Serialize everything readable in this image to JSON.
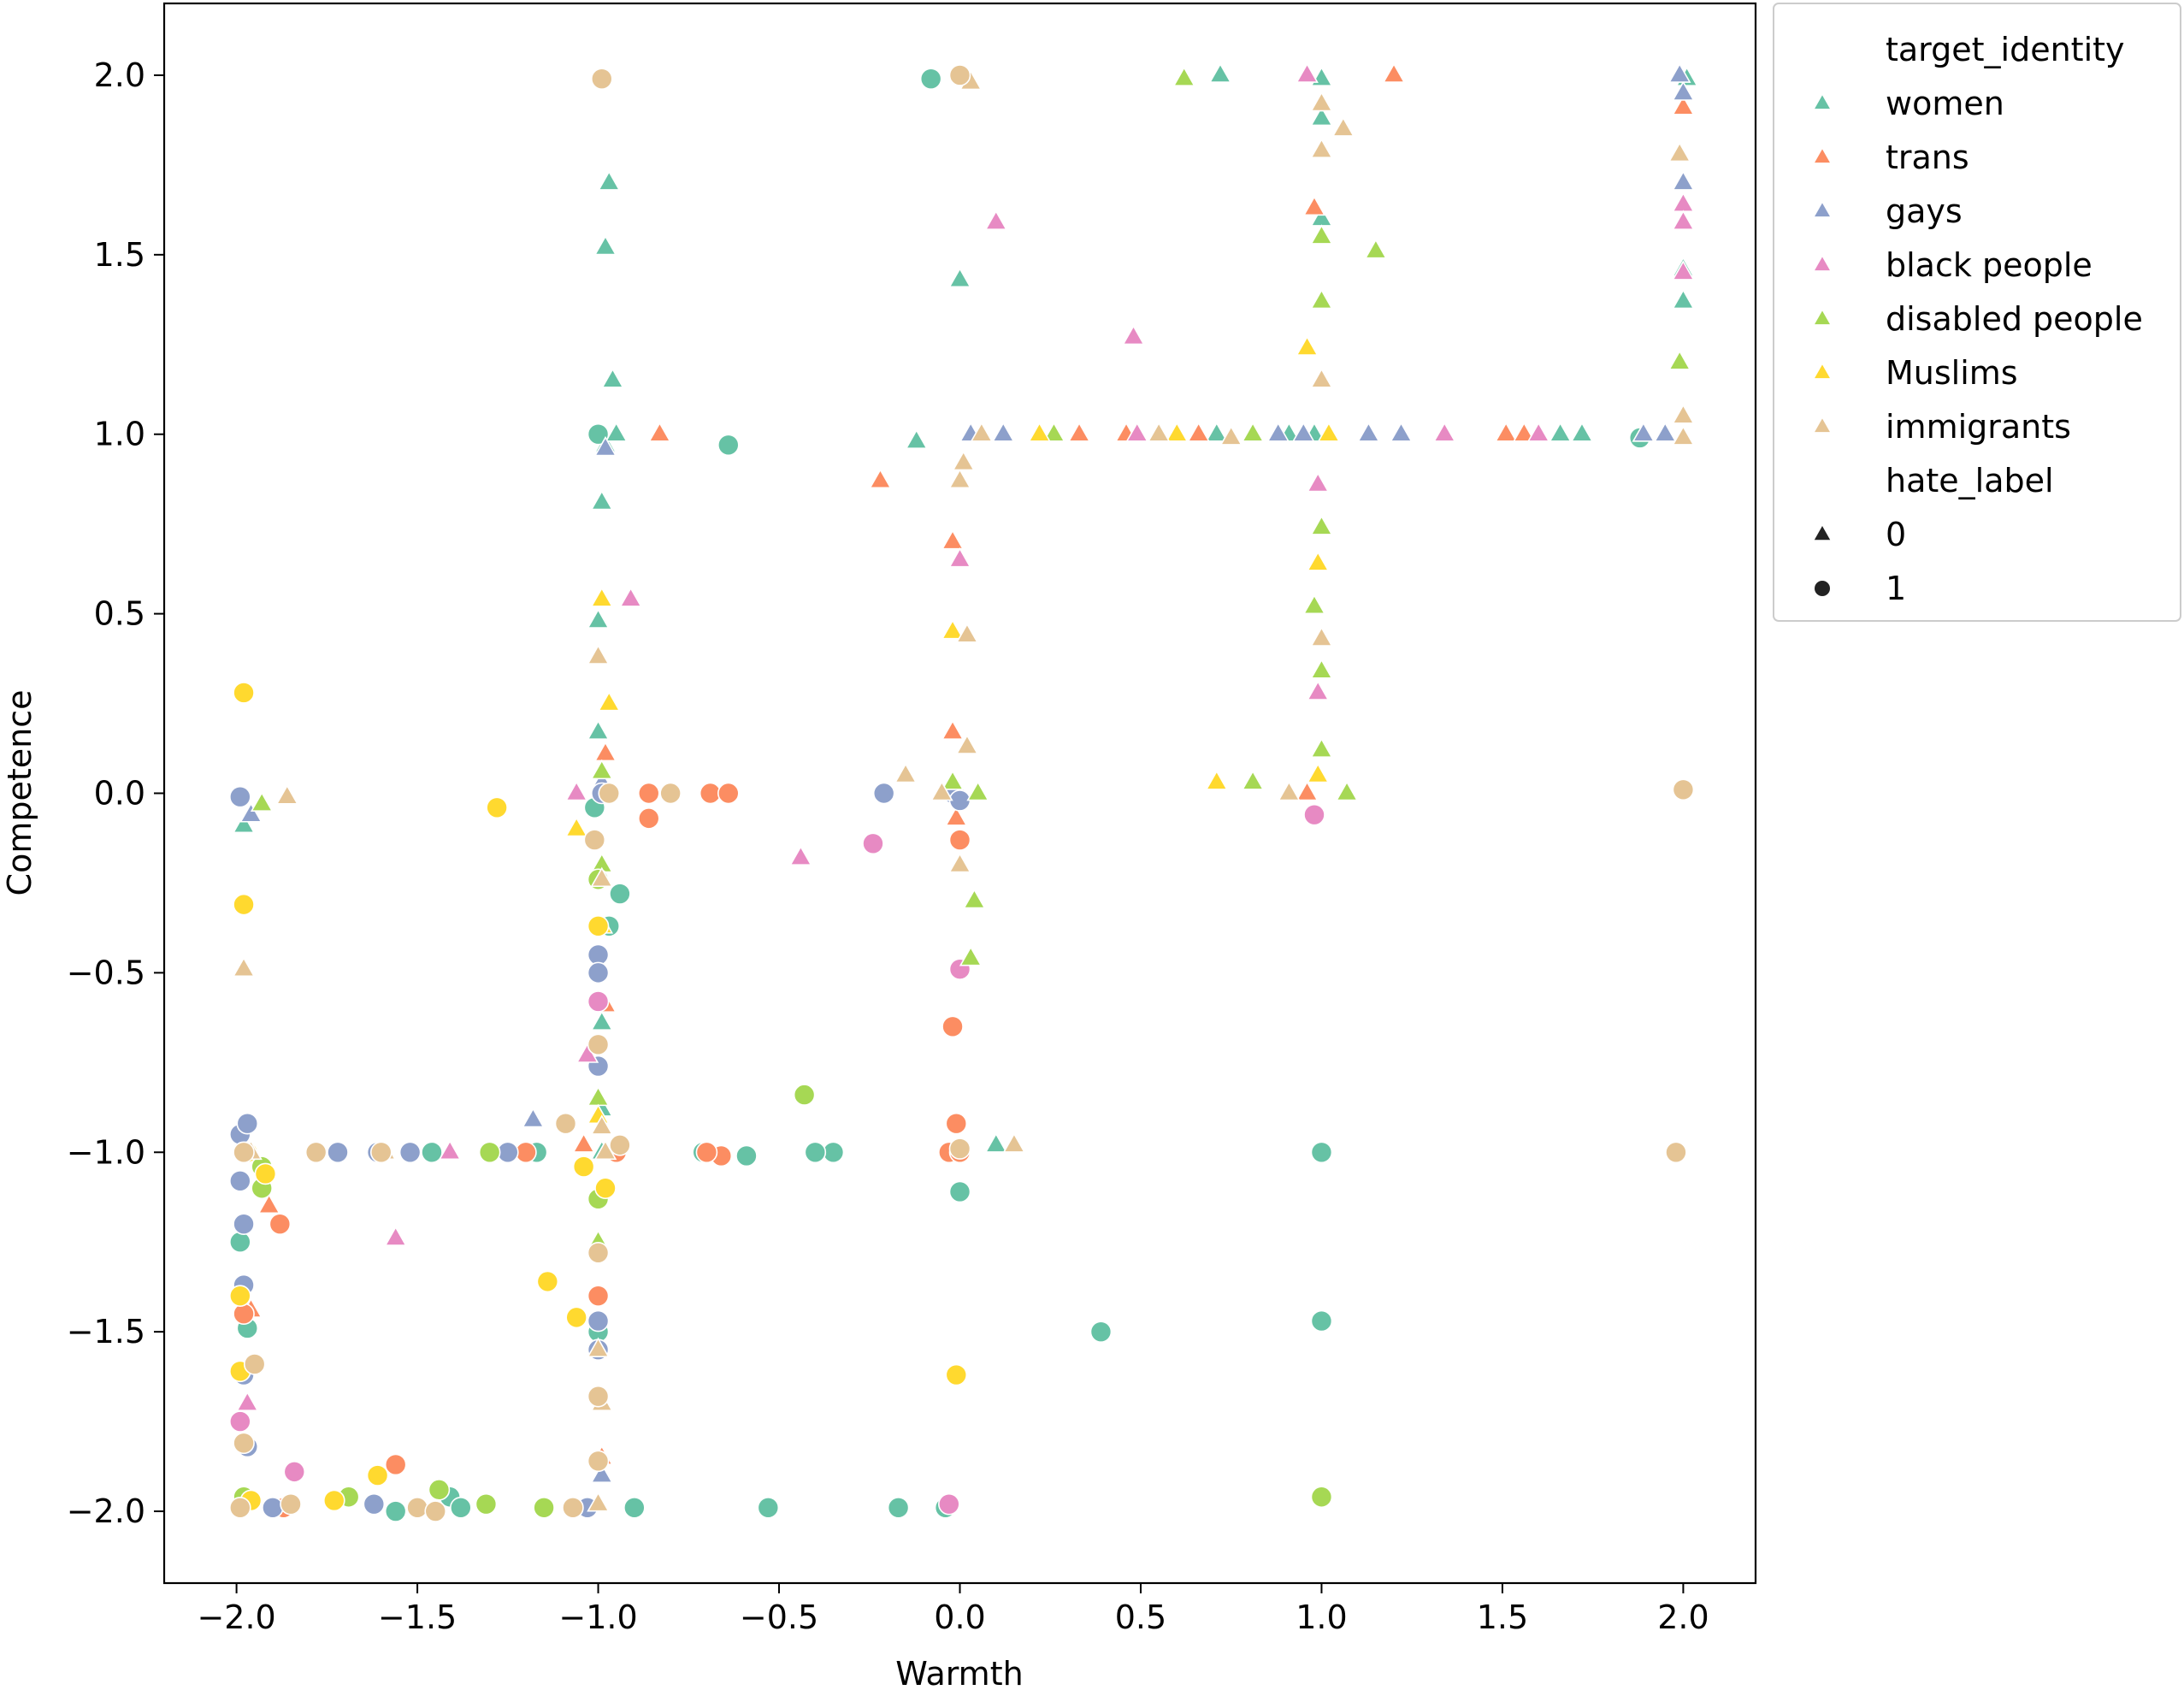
{
  "chart_data": {
    "type": "scatter",
    "title": "",
    "xlabel": "Warmth",
    "ylabel": "Competence",
    "xlim": [
      -2.2,
      2.2
    ],
    "ylim": [
      -2.2,
      2.2
    ],
    "xticks": [
      -2.0,
      -1.5,
      -1.0,
      -0.5,
      0.0,
      0.5,
      1.0,
      1.5,
      2.0
    ],
    "yticks": [
      -2.0,
      -1.5,
      -1.0,
      -0.5,
      0.0,
      0.5,
      1.0,
      1.5,
      2.0
    ],
    "xtick_labels": [
      "−2.0",
      "−1.5",
      "−1.0",
      "−0.5",
      "0.0",
      "0.5",
      "1.0",
      "1.5",
      "2.0"
    ],
    "ytick_labels": [
      "−2.0",
      "−1.5",
      "−1.0",
      "−0.5",
      "0.0",
      "0.5",
      "1.0",
      "1.5",
      "2.0"
    ],
    "grid": false,
    "legend": {
      "placement": "outside upper right",
      "hue_title": "target_identity",
      "style_title": "hate_label",
      "style_entries": [
        {
          "label": "0",
          "marker": "triangle"
        },
        {
          "label": "1",
          "marker": "circle"
        }
      ]
    },
    "series": [
      {
        "name": "women",
        "color": "#66c2a5",
        "hate_0": [
          [
            -1.98,
            -0.09
          ],
          [
            -0.97,
            1.7
          ],
          [
            -0.98,
            1.52
          ],
          [
            -0.96,
            1.15
          ],
          [
            -0.99,
            0.81
          ],
          [
            -1.0,
            0.17
          ],
          [
            -0.99,
            -0.64
          ],
          [
            -0.99,
            -1.0
          ],
          [
            -0.99,
            1.0
          ],
          [
            -0.98,
            0.97
          ],
          [
            -0.95,
            1.0
          ],
          [
            -0.12,
            0.98
          ],
          [
            0.0,
            1.43
          ],
          [
            0.72,
            2.0
          ],
          [
            0.71,
            1.0
          ],
          [
            1.0,
            1.99
          ],
          [
            1.0,
            1.6
          ],
          [
            1.0,
            1.88
          ],
          [
            1.66,
            1.0
          ],
          [
            1.72,
            1.0
          ],
          [
            2.0,
            1.46
          ],
          [
            2.0,
            1.37
          ],
          [
            2.01,
            1.99
          ],
          [
            0.98,
            1.0
          ],
          [
            0.1,
            -0.98
          ],
          [
            -0.99,
            -0.88
          ],
          [
            -1.0,
            0.48
          ],
          [
            0.91,
            1.0
          ]
        ],
        "hate_1": [
          [
            -1.99,
            -1.25
          ],
          [
            -1.97,
            -1.49
          ],
          [
            -1.56,
            -2.0
          ],
          [
            -1.41,
            -1.96
          ],
          [
            -1.38,
            -1.99
          ],
          [
            -0.9,
            -1.99
          ],
          [
            -0.53,
            -1.99
          ],
          [
            -0.17,
            -1.99
          ],
          [
            -0.04,
            -1.99
          ],
          [
            0.39,
            -1.5
          ],
          [
            1.0,
            -1.47
          ],
          [
            1.0,
            -1.0
          ],
          [
            0.0,
            -1.11
          ],
          [
            -0.35,
            -1.0
          ],
          [
            -0.4,
            -1.0
          ],
          [
            -0.59,
            -1.01
          ],
          [
            -0.71,
            -1.0
          ],
          [
            -0.94,
            -0.28
          ],
          [
            -0.97,
            -0.37
          ],
          [
            -0.64,
            0.97
          ],
          [
            -0.08,
            1.99
          ],
          [
            -1.0,
            1.0
          ],
          [
            -1.0,
            -1.5
          ],
          [
            1.88,
            0.99
          ],
          [
            -1.46,
            -1.0
          ],
          [
            -1.17,
            -1.0
          ],
          [
            -0.95,
            -1.0
          ],
          [
            -1.01,
            -0.04
          ]
        ]
      },
      {
        "name": "trans",
        "color": "#fc8d62",
        "hate_0": [
          [
            -1.91,
            -1.15
          ],
          [
            -1.96,
            -1.44
          ],
          [
            -0.83,
            1.0
          ],
          [
            -0.22,
            0.87
          ],
          [
            -0.02,
            0.7
          ],
          [
            -0.02,
            0.17
          ],
          [
            -0.98,
            0.11
          ],
          [
            -0.98,
            -0.59
          ],
          [
            -1.04,
            -0.98
          ],
          [
            0.46,
            1.0
          ],
          [
            0.66,
            1.0
          ],
          [
            1.2,
            2.0
          ],
          [
            0.98,
            1.63
          ],
          [
            1.51,
            1.0
          ],
          [
            1.56,
            1.0
          ],
          [
            2.0,
            1.91
          ],
          [
            -0.01,
            -0.07
          ],
          [
            0.05,
            0.0
          ],
          [
            0.96,
            0.0
          ],
          [
            -1.52,
            -1.0
          ],
          [
            0.33,
            1.0
          ],
          [
            -0.99,
            -1.85
          ]
        ],
        "hate_1": [
          [
            -1.88,
            -1.2
          ],
          [
            -1.98,
            -1.45
          ],
          [
            -1.56,
            -1.87
          ],
          [
            -0.86,
            0.0
          ],
          [
            -0.86,
            -0.07
          ],
          [
            -0.8,
            0.0
          ],
          [
            -0.69,
            0.0
          ],
          [
            -0.64,
            0.0
          ],
          [
            -0.02,
            -0.65
          ],
          [
            -0.01,
            -0.92
          ],
          [
            0.0,
            -0.13
          ],
          [
            -0.66,
            -1.01
          ],
          [
            -0.03,
            -1.0
          ],
          [
            -0.95,
            -1.0
          ],
          [
            -1.2,
            -1.0
          ],
          [
            -1.99,
            -1.99
          ],
          [
            -1.87,
            -1.99
          ],
          [
            -1.0,
            -1.4
          ],
          [
            0.0,
            -1.0
          ],
          [
            -0.7,
            -1.0
          ]
        ]
      },
      {
        "name": "gays",
        "color": "#8da0cb",
        "hate_0": [
          [
            -1.96,
            -0.06
          ],
          [
            -1.18,
            -0.91
          ],
          [
            -0.99,
            0.03
          ],
          [
            -0.98,
            0.96
          ],
          [
            0.0,
            0.0
          ],
          [
            0.03,
            1.0
          ],
          [
            0.12,
            1.0
          ],
          [
            0.88,
            1.0
          ],
          [
            0.95,
            1.0
          ],
          [
            1.13,
            1.0
          ],
          [
            1.22,
            1.0
          ],
          [
            1.89,
            1.0
          ],
          [
            1.95,
            1.0
          ],
          [
            2.0,
            1.7
          ],
          [
            2.0,
            1.95
          ],
          [
            1.99,
            2.0
          ],
          [
            -0.99,
            -1.9
          ],
          [
            -1.0,
            -1.25
          ]
        ],
        "hate_1": [
          [
            -1.99,
            -0.01
          ],
          [
            -1.99,
            -0.95
          ],
          [
            -1.97,
            -0.92
          ],
          [
            -1.99,
            -1.08
          ],
          [
            -1.98,
            -1.2
          ],
          [
            -1.98,
            -1.37
          ],
          [
            -1.98,
            -1.62
          ],
          [
            -1.97,
            -1.82
          ],
          [
            -1.9,
            -1.99
          ],
          [
            -1.62,
            -1.98
          ],
          [
            -1.52,
            -1.0
          ],
          [
            -1.61,
            -1.0
          ],
          [
            -1.72,
            -1.0
          ],
          [
            -1.25,
            -1.0
          ],
          [
            -1.0,
            -0.45
          ],
          [
            -1.0,
            -0.5
          ],
          [
            -1.0,
            -0.76
          ],
          [
            -1.0,
            -1.47
          ],
          [
            -1.0,
            -1.55
          ],
          [
            -0.99,
            0.0
          ],
          [
            -0.21,
            0.0
          ],
          [
            -0.02,
            0.0
          ],
          [
            0.0,
            -0.02
          ],
          [
            -1.03,
            -1.99
          ]
        ]
      },
      {
        "name": "black people",
        "color": "#e78ac3",
        "hate_0": [
          [
            -1.56,
            -1.24
          ],
          [
            -1.03,
            -0.73
          ],
          [
            -1.06,
            0.0
          ],
          [
            -0.91,
            0.54
          ],
          [
            -0.44,
            -0.18
          ],
          [
            0.1,
            1.59
          ],
          [
            0.48,
            1.27
          ],
          [
            0.49,
            1.0
          ],
          [
            0.96,
            2.0
          ],
          [
            1.34,
            1.0
          ],
          [
            1.6,
            1.0
          ],
          [
            2.0,
            1.64
          ],
          [
            2.0,
            1.59
          ],
          [
            2.0,
            1.45
          ],
          [
            0.99,
            0.86
          ],
          [
            0.99,
            0.28
          ],
          [
            -0.0,
            0.65
          ],
          [
            -1.97,
            -1.7
          ],
          [
            -1.41,
            -1.0
          ]
        ],
        "hate_1": [
          [
            -1.84,
            -1.89
          ],
          [
            -0.24,
            -0.14
          ],
          [
            -0.0,
            -0.49
          ],
          [
            0.98,
            -0.06
          ],
          [
            -0.03,
            -1.98
          ],
          [
            -1.99,
            -1.75
          ],
          [
            -1.0,
            -0.58
          ]
        ]
      },
      {
        "name": "disabled people",
        "color": "#a6d854",
        "hate_0": [
          [
            -1.93,
            -0.03
          ],
          [
            -0.99,
            0.06
          ],
          [
            -0.02,
            0.03
          ],
          [
            0.03,
            -0.46
          ],
          [
            0.04,
            -0.3
          ],
          [
            0.05,
            0.0
          ],
          [
            0.26,
            1.0
          ],
          [
            0.62,
            1.99
          ],
          [
            0.81,
            1.0
          ],
          [
            0.81,
            0.03
          ],
          [
            0.98,
            0.52
          ],
          [
            1.0,
            1.55
          ],
          [
            1.0,
            1.37
          ],
          [
            1.0,
            0.74
          ],
          [
            1.0,
            0.34
          ],
          [
            1.0,
            0.12
          ],
          [
            1.07,
            0.0
          ],
          [
            1.15,
            1.51
          ],
          [
            1.99,
            1.2
          ],
          [
            -0.99,
            -0.2
          ],
          [
            -1.0,
            -0.85
          ],
          [
            -1.0,
            -1.25
          ]
        ],
        "hate_1": [
          [
            -1.93,
            -1.1
          ],
          [
            -1.93,
            -1.04
          ],
          [
            -1.44,
            -1.94
          ],
          [
            -1.69,
            -1.96
          ],
          [
            -1.31,
            -1.98
          ],
          [
            -1.15,
            -1.99
          ],
          [
            -0.43,
            -0.84
          ],
          [
            1.0,
            -1.96
          ],
          [
            -1.3,
            -1.0
          ],
          [
            -1.0,
            -1.13
          ],
          [
            -1.0,
            -0.24
          ],
          [
            -1.98,
            -1.96
          ]
        ]
      },
      {
        "name": "Muslims",
        "color": "#ffd92f",
        "hate_0": [
          [
            -1.06,
            -0.1
          ],
          [
            -0.99,
            0.54
          ],
          [
            -0.97,
            0.25
          ],
          [
            -0.99,
            -0.37
          ],
          [
            0.22,
            1.0
          ],
          [
            0.6,
            1.0
          ],
          [
            0.96,
            1.24
          ],
          [
            0.99,
            0.64
          ],
          [
            0.71,
            0.03
          ],
          [
            0.99,
            0.05
          ],
          [
            -0.02,
            0.45
          ],
          [
            1.02,
            1.0
          ],
          [
            -1.0,
            -0.9
          ]
        ],
        "hate_1": [
          [
            -1.98,
            0.28
          ],
          [
            -1.98,
            -0.31
          ],
          [
            -1.28,
            -0.04
          ],
          [
            -1.14,
            -1.36
          ],
          [
            -1.06,
            -1.46
          ],
          [
            -1.04,
            -1.04
          ],
          [
            -1.0,
            -0.37
          ],
          [
            -1.99,
            -1.4
          ],
          [
            -1.99,
            -1.61
          ],
          [
            -1.96,
            -1.97
          ],
          [
            -1.73,
            -1.97
          ],
          [
            -1.61,
            -1.9
          ],
          [
            -0.01,
            -1.62
          ],
          [
            -1.92,
            -1.06
          ],
          [
            -1.97,
            -1.0
          ],
          [
            -0.98,
            -1.1
          ]
        ]
      },
      {
        "name": "immigrants",
        "color": "#e5c494",
        "hate_0": [
          [
            -1.98,
            -0.49
          ],
          [
            -1.86,
            -0.01
          ],
          [
            -1.96,
            -1.0
          ],
          [
            -1.59,
            -1.0
          ],
          [
            -1.0,
            0.38
          ],
          [
            -0.99,
            -0.24
          ],
          [
            -0.99,
            -0.93
          ],
          [
            -0.99,
            -1.7
          ],
          [
            -0.15,
            0.05
          ],
          [
            -0.05,
            0.0
          ],
          [
            0.0,
            -0.2
          ],
          [
            0.02,
            0.44
          ],
          [
            0.02,
            0.13
          ],
          [
            0.0,
            0.87
          ],
          [
            0.01,
            0.92
          ],
          [
            0.03,
            1.98
          ],
          [
            0.06,
            1.0
          ],
          [
            0.15,
            -0.98
          ],
          [
            0.55,
            1.0
          ],
          [
            0.75,
            0.99
          ],
          [
            0.91,
            0.0
          ],
          [
            1.0,
            1.15
          ],
          [
            1.0,
            0.43
          ],
          [
            1.0,
            1.79
          ],
          [
            1.0,
            1.92
          ],
          [
            1.06,
            1.85
          ],
          [
            1.99,
            1.78
          ],
          [
            2.0,
            1.05
          ],
          [
            2.0,
            0.99
          ],
          [
            -0.98,
            -1.0
          ],
          [
            -1.0,
            -1.55
          ],
          [
            -1.0,
            -1.98
          ]
        ],
        "hate_1": [
          [
            -1.98,
            -1.0
          ],
          [
            -1.95,
            -1.59
          ],
          [
            -1.98,
            -1.81
          ],
          [
            -1.99,
            -1.99
          ],
          [
            -1.85,
            -1.98
          ],
          [
            -1.5,
            -1.99
          ],
          [
            -1.45,
            -2.0
          ],
          [
            -1.07,
            -1.99
          ],
          [
            -1.09,
            -0.92
          ],
          [
            -1.0,
            -0.7
          ],
          [
            -1.0,
            -1.28
          ],
          [
            -1.0,
            -1.68
          ],
          [
            -1.0,
            -1.86
          ],
          [
            -0.97,
            0.0
          ],
          [
            -0.8,
            0.0
          ],
          [
            -0.99,
            1.99
          ],
          [
            -0.94,
            -0.98
          ],
          [
            0.0,
            2.0
          ],
          [
            0.0,
            -0.99
          ],
          [
            1.98,
            -1.0
          ],
          [
            2.0,
            0.01
          ],
          [
            -1.78,
            -1.0
          ],
          [
            -1.6,
            -1.0
          ],
          [
            -1.01,
            -0.13
          ]
        ]
      }
    ]
  }
}
